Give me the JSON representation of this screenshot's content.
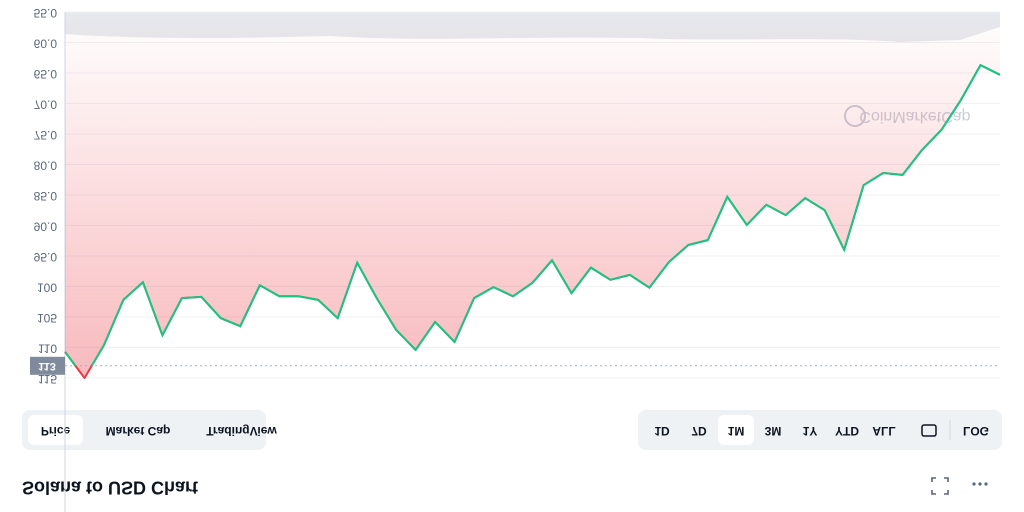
{
  "header": {
    "title": "Solana to USD Chart"
  },
  "tabs": [
    "Price",
    "Market Cap",
    "TradingView"
  ],
  "active_tab": 0,
  "ranges": [
    "1D",
    "7D",
    "1M",
    "3M",
    "1Y",
    "YTD",
    "ALL"
  ],
  "active_range": 2,
  "log_button": "LOG",
  "chart_data": {
    "type": "line",
    "watermark": "CoinMarketCap",
    "series": [
      {
        "name": "Price",
        "color": "#ea3943",
        "values": [
          110.7,
          115,
          109.6,
          102.2,
          99.3,
          108,
          101.9,
          101.7,
          105.2,
          106.5,
          99.8,
          101.6,
          101.6,
          102.2,
          105.2,
          96.1,
          101.9,
          107.1,
          110.4,
          105.8,
          109.1,
          101.9,
          100.1,
          101.6,
          99.4,
          95.7,
          101.1,
          96.9,
          98.9,
          98.1,
          100.2,
          96,
          93.2,
          92.4,
          85.3,
          89.9,
          86.6,
          88.3,
          85.5,
          87.5,
          94,
          83.4,
          81.4,
          81.7,
          77.6,
          74.3,
          69.4,
          63.7,
          65.3
        ]
      }
    ],
    "reference": {
      "value": 113,
      "label": "113",
      "color": "#16c784"
    },
    "ylim": [
      115,
      55
    ],
    "yticks": [
      {
        "value": 55,
        "label": "55.0"
      },
      {
        "value": 60,
        "label": "60.0"
      },
      {
        "value": 65,
        "label": "65.0"
      },
      {
        "value": 70,
        "label": "70.0"
      },
      {
        "value": 75,
        "label": "75.0"
      },
      {
        "value": 80,
        "label": "80.0"
      },
      {
        "value": 85,
        "label": "85.0"
      },
      {
        "value": 90,
        "label": "90.0"
      },
      {
        "value": 95,
        "label": "95.0"
      },
      100,
      105,
      110,
      115
    ],
    "grid": true
  }
}
